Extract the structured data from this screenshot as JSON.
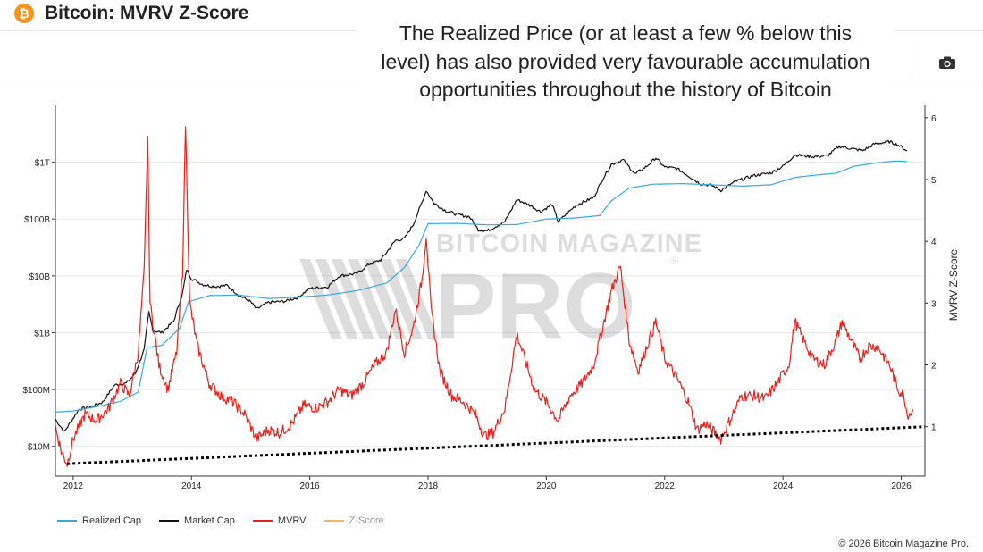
{
  "header": {
    "icon_glyph": "₿",
    "title": "Bitcoin: MVRV Z-Score"
  },
  "toolbar": {
    "camera_icon": "camera-icon"
  },
  "annotation": {
    "lines": [
      "The Realized Price (or at least a few % below this",
      "level) has also provided very favourable accumulation",
      "opportunities throughout the history of Bitcoin"
    ]
  },
  "watermark": {
    "top": "BITCOIN MAGAZINE",
    "bottom": "PRO",
    "reg": "®"
  },
  "legend": [
    {
      "label": "Realized Cap",
      "color": "#3aa9d8",
      "enabled": true
    },
    {
      "label": "Market Cap",
      "color": "#111111",
      "enabled": true
    },
    {
      "label": "MVRV",
      "color": "#e8211c",
      "enabled": true
    },
    {
      "label": "Z-Score",
      "color": "#f2b36b",
      "enabled": false
    }
  ],
  "footer": {
    "copyright": "© 2026 Bitcoin Magazine Pro."
  },
  "chart_data": {
    "type": "line",
    "title": "Bitcoin: MVRV Z-Score",
    "x_ticks": [
      "2012",
      "2014",
      "2016",
      "2018",
      "2020",
      "2022",
      "2024",
      "2026"
    ],
    "xlim": [
      2011.7,
      2026.4
    ],
    "y_left_ticks": [
      "$10M",
      "$100M",
      "$1B",
      "$10B",
      "$100B",
      "$1T"
    ],
    "y_left_scale": "log",
    "y_left_range_usd": [
      3000000.0,
      10000000000000.0
    ],
    "y_right_label": "MVRV Z-Score",
    "y_right_ticks": [
      "1",
      "2",
      "3",
      "4",
      "5",
      "6"
    ],
    "y_right_range": [
      0.2,
      6.2
    ],
    "grid": true,
    "legend_position": "bottom-left",
    "series": [
      {
        "name": "Market Cap",
        "color": "#111111",
        "unit": "USD",
        "points": [
          [
            2011.7,
            30000000.0
          ],
          [
            2011.85,
            18000000.0
          ],
          [
            2011.95,
            26000000.0
          ],
          [
            2012.1,
            45000000.0
          ],
          [
            2012.3,
            50000000.0
          ],
          [
            2012.5,
            60000000.0
          ],
          [
            2012.7,
            120000000.0
          ],
          [
            2012.9,
            130000000.0
          ],
          [
            2013.05,
            190000000.0
          ],
          [
            2013.2,
            500000000.0
          ],
          [
            2013.28,
            2300000000.0
          ],
          [
            2013.35,
            1100000000.0
          ],
          [
            2013.5,
            1000000000.0
          ],
          [
            2013.7,
            1600000000.0
          ],
          [
            2013.85,
            5000000000.0
          ],
          [
            2013.92,
            13000000000.0
          ],
          [
            2014.0,
            9000000000.0
          ],
          [
            2014.2,
            7000000000.0
          ],
          [
            2014.4,
            6500000000.0
          ],
          [
            2014.6,
            6800000000.0
          ],
          [
            2014.8,
            4600000000.0
          ],
          [
            2015.0,
            3500000000.0
          ],
          [
            2015.1,
            2600000000.0
          ],
          [
            2015.3,
            3400000000.0
          ],
          [
            2015.6,
            3600000000.0
          ],
          [
            2015.8,
            4200000000.0
          ],
          [
            2016.0,
            6000000000.0
          ],
          [
            2016.3,
            6400000000.0
          ],
          [
            2016.5,
            10000000000.0
          ],
          [
            2016.8,
            11000000000.0
          ],
          [
            2017.0,
            16000000000.0
          ],
          [
            2017.2,
            19000000000.0
          ],
          [
            2017.45,
            42000000000.0
          ],
          [
            2017.6,
            45000000000.0
          ],
          [
            2017.75,
            80000000000.0
          ],
          [
            2017.9,
            200000000000.0
          ],
          [
            2017.97,
            320000000000.0
          ],
          [
            2018.1,
            190000000000.0
          ],
          [
            2018.3,
            140000000000.0
          ],
          [
            2018.5,
            120000000000.0
          ],
          [
            2018.7,
            110000000000.0
          ],
          [
            2018.85,
            65000000000.0
          ],
          [
            2019.0,
            62000000000.0
          ],
          [
            2019.3,
            90000000000.0
          ],
          [
            2019.5,
            220000000000.0
          ],
          [
            2019.7,
            180000000000.0
          ],
          [
            2019.9,
            135000000000.0
          ],
          [
            2020.1,
            180000000000.0
          ],
          [
            2020.2,
            90000000000.0
          ],
          [
            2020.5,
            175000000000.0
          ],
          [
            2020.8,
            240000000000.0
          ],
          [
            2020.95,
            500000000000.0
          ],
          [
            2021.1,
            920000000000.0
          ],
          [
            2021.3,
            1100000000000.0
          ],
          [
            2021.5,
            620000000000.0
          ],
          [
            2021.7,
            850000000000.0
          ],
          [
            2021.85,
            1200000000000.0
          ],
          [
            2022.0,
            820000000000.0
          ],
          [
            2022.2,
            780000000000.0
          ],
          [
            2022.4,
            580000000000.0
          ],
          [
            2022.6,
            420000000000.0
          ],
          [
            2022.8,
            390000000000.0
          ],
          [
            2022.95,
            320000000000.0
          ],
          [
            2023.2,
            460000000000.0
          ],
          [
            2023.5,
            580000000000.0
          ],
          [
            2023.8,
            650000000000.0
          ],
          [
            2024.0,
            850000000000.0
          ],
          [
            2024.2,
            1350000000000.0
          ],
          [
            2024.5,
            1250000000000.0
          ],
          [
            2024.75,
            1300000000000.0
          ],
          [
            2024.95,
            1900000000000.0
          ],
          [
            2025.2,
            1700000000000.0
          ],
          [
            2025.35,
            1600000000000.0
          ],
          [
            2025.55,
            2100000000000.0
          ],
          [
            2025.8,
            2300000000000.0
          ],
          [
            2025.95,
            2000000000000.0
          ],
          [
            2026.1,
            1600000000000.0
          ]
        ]
      },
      {
        "name": "Realized Cap",
        "color": "#3aa9d8",
        "unit": "USD",
        "points": [
          [
            2011.7,
            40000000.0
          ],
          [
            2012.0,
            42000000.0
          ],
          [
            2012.4,
            50000000.0
          ],
          [
            2012.8,
            62000000.0
          ],
          [
            2013.1,
            90000000.0
          ],
          [
            2013.25,
            550000000.0
          ],
          [
            2013.5,
            600000000.0
          ],
          [
            2013.8,
            1200000000.0
          ],
          [
            2013.95,
            3500000000.0
          ],
          [
            2014.3,
            4500000000.0
          ],
          [
            2014.8,
            4600000000.0
          ],
          [
            2015.3,
            4000000000.0
          ],
          [
            2015.8,
            4200000000.0
          ],
          [
            2016.3,
            4600000000.0
          ],
          [
            2016.8,
            5500000000.0
          ],
          [
            2017.3,
            7500000000.0
          ],
          [
            2017.6,
            14000000000.0
          ],
          [
            2017.85,
            35000000000.0
          ],
          [
            2018.0,
            83000000000.0
          ],
          [
            2018.5,
            84000000000.0
          ],
          [
            2019.0,
            79000000000.0
          ],
          [
            2019.5,
            80000000000.0
          ],
          [
            2020.0,
            100000000000.0
          ],
          [
            2020.5,
            105000000000.0
          ],
          [
            2020.9,
            115000000000.0
          ],
          [
            2021.1,
            210000000000.0
          ],
          [
            2021.4,
            350000000000.0
          ],
          [
            2021.8,
            410000000000.0
          ],
          [
            2022.3,
            420000000000.0
          ],
          [
            2022.8,
            400000000000.0
          ],
          [
            2023.3,
            380000000000.0
          ],
          [
            2023.8,
            400000000000.0
          ],
          [
            2024.2,
            540000000000.0
          ],
          [
            2024.6,
            600000000000.0
          ],
          [
            2024.9,
            640000000000.0
          ],
          [
            2025.2,
            850000000000.0
          ],
          [
            2025.6,
            980000000000.0
          ],
          [
            2025.9,
            1050000000000.0
          ],
          [
            2026.1,
            1030000000000.0
          ]
        ]
      },
      {
        "name": "MVRV",
        "color": "#e8211c",
        "unit": "ratio",
        "points": [
          [
            2011.7,
            1.0
          ],
          [
            2011.8,
            0.6
          ],
          [
            2011.9,
            0.4
          ],
          [
            2012.0,
            0.8
          ],
          [
            2012.2,
            1.2
          ],
          [
            2012.4,
            1.1
          ],
          [
            2012.6,
            1.3
          ],
          [
            2012.8,
            1.7
          ],
          [
            2012.95,
            1.5
          ],
          [
            2013.1,
            2.2
          ],
          [
            2013.2,
            3.5
          ],
          [
            2013.26,
            5.7
          ],
          [
            2013.3,
            3.0
          ],
          [
            2013.45,
            2.0
          ],
          [
            2013.6,
            1.6
          ],
          [
            2013.75,
            2.2
          ],
          [
            2013.85,
            3.5
          ],
          [
            2013.9,
            5.9
          ],
          [
            2013.97,
            3.0
          ],
          [
            2014.1,
            2.3
          ],
          [
            2014.3,
            1.7
          ],
          [
            2014.5,
            1.5
          ],
          [
            2014.7,
            1.4
          ],
          [
            2014.9,
            1.2
          ],
          [
            2015.1,
            0.8
          ],
          [
            2015.3,
            0.95
          ],
          [
            2015.5,
            0.9
          ],
          [
            2015.7,
            1.05
          ],
          [
            2015.9,
            1.35
          ],
          [
            2016.1,
            1.3
          ],
          [
            2016.3,
            1.4
          ],
          [
            2016.5,
            1.6
          ],
          [
            2016.7,
            1.5
          ],
          [
            2016.9,
            1.7
          ],
          [
            2017.1,
            2.0
          ],
          [
            2017.3,
            2.2
          ],
          [
            2017.45,
            2.9
          ],
          [
            2017.6,
            2.2
          ],
          [
            2017.75,
            2.6
          ],
          [
            2017.9,
            3.4
          ],
          [
            2017.97,
            4.1
          ],
          [
            2018.05,
            2.9
          ],
          [
            2018.2,
            1.9
          ],
          [
            2018.4,
            1.5
          ],
          [
            2018.6,
            1.4
          ],
          [
            2018.8,
            1.2
          ],
          [
            2018.95,
            0.85
          ],
          [
            2019.1,
            0.9
          ],
          [
            2019.3,
            1.3
          ],
          [
            2019.5,
            2.5
          ],
          [
            2019.6,
            2.2
          ],
          [
            2019.8,
            1.6
          ],
          [
            2020.0,
            1.4
          ],
          [
            2020.2,
            1.1
          ],
          [
            2020.4,
            1.5
          ],
          [
            2020.6,
            1.7
          ],
          [
            2020.8,
            2.0
          ],
          [
            2020.95,
            2.6
          ],
          [
            2021.1,
            3.2
          ],
          [
            2021.25,
            3.6
          ],
          [
            2021.4,
            2.4
          ],
          [
            2021.55,
            1.9
          ],
          [
            2021.7,
            2.3
          ],
          [
            2021.85,
            2.7
          ],
          [
            2022.0,
            2.1
          ],
          [
            2022.2,
            1.8
          ],
          [
            2022.4,
            1.4
          ],
          [
            2022.55,
            0.95
          ],
          [
            2022.7,
            1.05
          ],
          [
            2022.95,
            0.8
          ],
          [
            2023.1,
            1.1
          ],
          [
            2023.3,
            1.5
          ],
          [
            2023.5,
            1.5
          ],
          [
            2023.7,
            1.45
          ],
          [
            2023.9,
            1.7
          ],
          [
            2024.1,
            2.0
          ],
          [
            2024.2,
            2.7
          ],
          [
            2024.35,
            2.4
          ],
          [
            2024.5,
            2.1
          ],
          [
            2024.7,
            2.0
          ],
          [
            2024.9,
            2.4
          ],
          [
            2025.0,
            2.7
          ],
          [
            2025.2,
            2.3
          ],
          [
            2025.3,
            2.1
          ],
          [
            2025.45,
            2.3
          ],
          [
            2025.6,
            2.3
          ],
          [
            2025.8,
            2.0
          ],
          [
            2025.95,
            1.6
          ],
          [
            2026.05,
            1.5
          ],
          [
            2026.1,
            1.2
          ],
          [
            2026.2,
            1.25
          ]
        ]
      },
      {
        "name": "Support line",
        "color": "#000000",
        "style": "dotted",
        "unit": "ratio",
        "points": [
          [
            2011.9,
            0.4
          ],
          [
            2026.4,
            1.0
          ]
        ]
      }
    ]
  }
}
